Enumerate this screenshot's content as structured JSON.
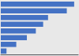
{
  "chart_data": {
    "type": "bar",
    "orientation": "horizontal",
    "categories": [
      null,
      null,
      null,
      null,
      null,
      null,
      null,
      null
    ],
    "values": [
      9004,
      8100,
      5800,
      5200,
      4300,
      3200,
      1900,
      700
    ],
    "color": "#4472c4",
    "xlim": [
      0,
      9500
    ],
    "grid": false,
    "tick_labels": false
  }
}
